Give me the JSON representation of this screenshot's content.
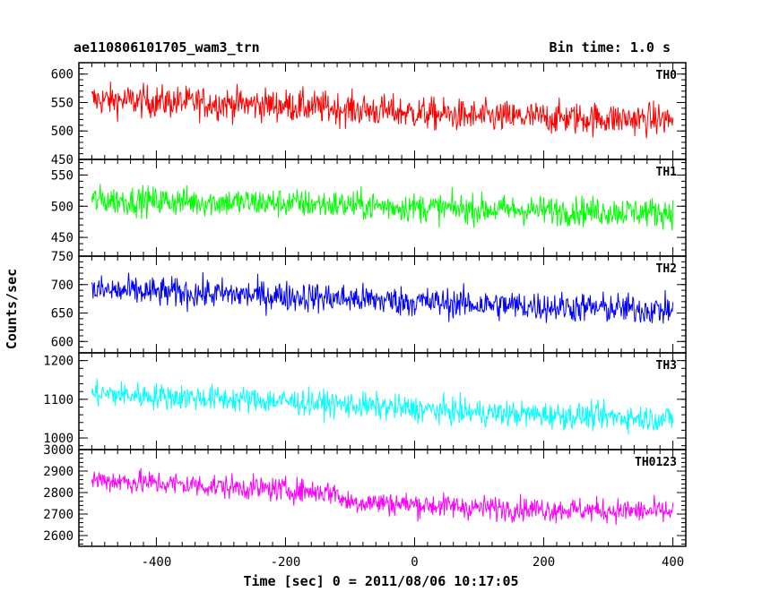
{
  "chart_data": {
    "type": "line",
    "title": "ae110806101705_wam3_trn",
    "subtitle": "Bin time: 1.0 s",
    "xlabel": "Time [sec] 0 = 2011/08/06 10:17:05",
    "ylabel": "Counts/sec",
    "xlim": [
      -520,
      420
    ],
    "x_range": [
      -500,
      400
    ],
    "bin_time": 1.0,
    "x_ticks": [
      -400,
      -200,
      0,
      200,
      400
    ],
    "panels": [
      {
        "name": "TH0",
        "color": "#ff0000",
        "ylim": [
          450,
          620
        ],
        "y_ticks": [
          450,
          500,
          550,
          600
        ],
        "trend": [
          [
            -500,
            555
          ],
          [
            -200,
            545
          ],
          [
            100,
            525
          ],
          [
            400,
            520
          ]
        ],
        "amplitude": 28
      },
      {
        "name": "TH1",
        "color": "#00ff00",
        "ylim": [
          420,
          575
        ],
        "y_ticks": [
          450,
          500,
          550
        ],
        "trend": [
          [
            -500,
            510
          ],
          [
            -200,
            505
          ],
          [
            100,
            495
          ],
          [
            400,
            490
          ]
        ],
        "amplitude": 23
      },
      {
        "name": "TH2",
        "color": "#0000ff",
        "ylim": [
          580,
          750
        ],
        "y_ticks": [
          600,
          650,
          700,
          750
        ],
        "trend": [
          [
            -500,
            690
          ],
          [
            -200,
            680
          ],
          [
            100,
            665
          ],
          [
            400,
            655
          ]
        ],
        "amplitude": 26
      },
      {
        "name": "TH3",
        "color": "#00ffff",
        "ylim": [
          970,
          1220
        ],
        "y_ticks": [
          1000,
          1100,
          1200
        ],
        "trend": [
          [
            -500,
            1115
          ],
          [
            -200,
            1095
          ],
          [
            100,
            1065
          ],
          [
            400,
            1050
          ]
        ],
        "amplitude": 33
      },
      {
        "name": "TH0123",
        "color": "#ff00ff",
        "ylim": [
          2550,
          3000
        ],
        "y_ticks": [
          2600,
          2700,
          2800,
          2900,
          3000
        ],
        "trend": [
          [
            -500,
            2860
          ],
          [
            -120,
            2800
          ],
          [
            -110,
            2760
          ],
          [
            100,
            2730
          ],
          [
            400,
            2710
          ]
        ],
        "amplitude": 55
      }
    ]
  }
}
